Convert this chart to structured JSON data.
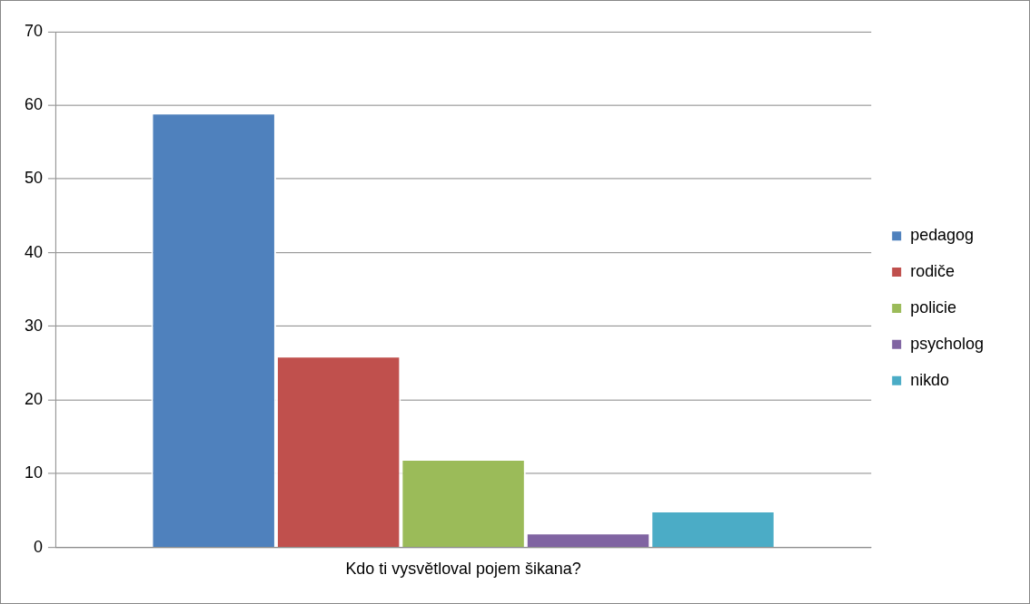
{
  "chart_data": {
    "type": "bar",
    "categories": [
      "Kdo ti vysvětloval pojem šikana?"
    ],
    "series": [
      {
        "name": "pedagog",
        "color": "#4f81bd",
        "values": [
          59
        ]
      },
      {
        "name": "rodiče",
        "color": "#c0504d",
        "values": [
          26
        ]
      },
      {
        "name": "policie",
        "color": "#9bbb59",
        "values": [
          12
        ]
      },
      {
        "name": "psycholog",
        "color": "#8064a2",
        "values": [
          2
        ]
      },
      {
        "name": "nikdo",
        "color": "#4bacc6",
        "values": [
          5
        ]
      }
    ],
    "ylim": [
      0,
      70
    ],
    "yticks": [
      0,
      10,
      20,
      30,
      40,
      50,
      60,
      70
    ],
    "grid": "y",
    "legend": "right"
  }
}
